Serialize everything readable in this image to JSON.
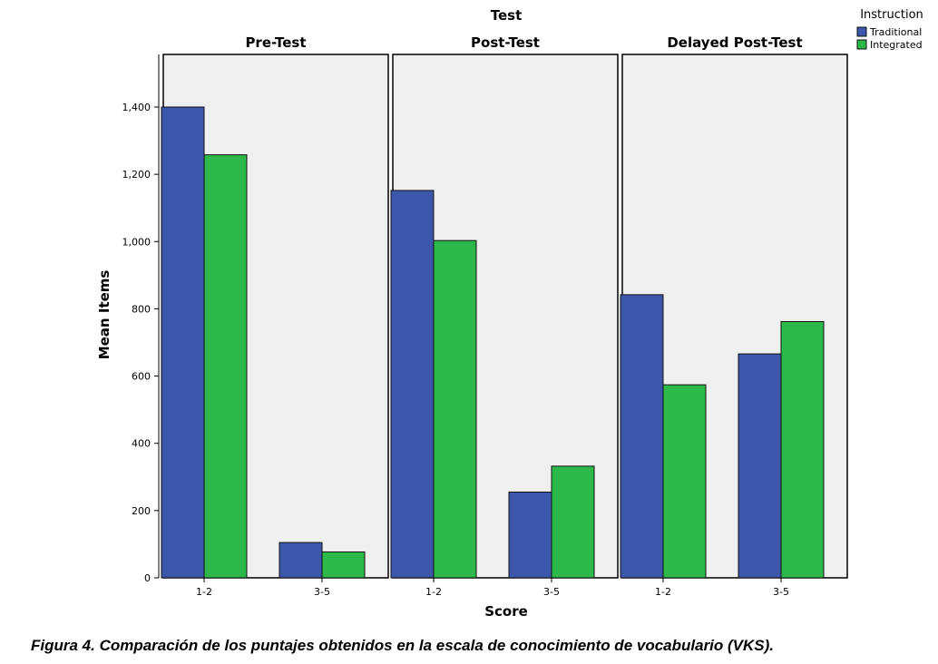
{
  "chart_data": {
    "type": "bar",
    "title": "Test",
    "xlabel": "Score",
    "ylabel": "Mean Items",
    "ylim": [
      0,
      1550
    ],
    "yticks": [
      0,
      200,
      400,
      600,
      800,
      1000,
      1200,
      1400
    ],
    "ytick_labels": [
      "0",
      "200",
      "400",
      "600",
      "800",
      "1,000",
      "1,200",
      "1,400"
    ],
    "categories": [
      "1-2",
      "3-5"
    ],
    "panels": [
      {
        "label": "Pre-Test",
        "series": [
          {
            "name": "Traditional",
            "values": [
              1400,
              105
            ]
          },
          {
            "name": "Integrated",
            "values": [
              1258,
              77
            ]
          }
        ]
      },
      {
        "label": "Post-Test",
        "series": [
          {
            "name": "Traditional",
            "values": [
              1152,
              255
            ]
          },
          {
            "name": "Integrated",
            "values": [
              1003,
              332
            ]
          }
        ]
      },
      {
        "label": "Delayed Post-Test",
        "series": [
          {
            "name": "Traditional",
            "values": [
              842,
              666
            ]
          },
          {
            "name": "Integrated",
            "values": [
              574,
              762
            ]
          }
        ]
      }
    ],
    "legend": {
      "title": "Instruction",
      "placement": "top-right",
      "entries": [
        "Traditional",
        "Integrated"
      ]
    },
    "colors": {
      "Traditional": "#3c56ab",
      "Integrated": "#2db84a"
    },
    "grid": false
  },
  "caption": "Figura 4. Comparación de los puntajes obtenidos en la escala de conocimiento de vocabulario (VKS)."
}
